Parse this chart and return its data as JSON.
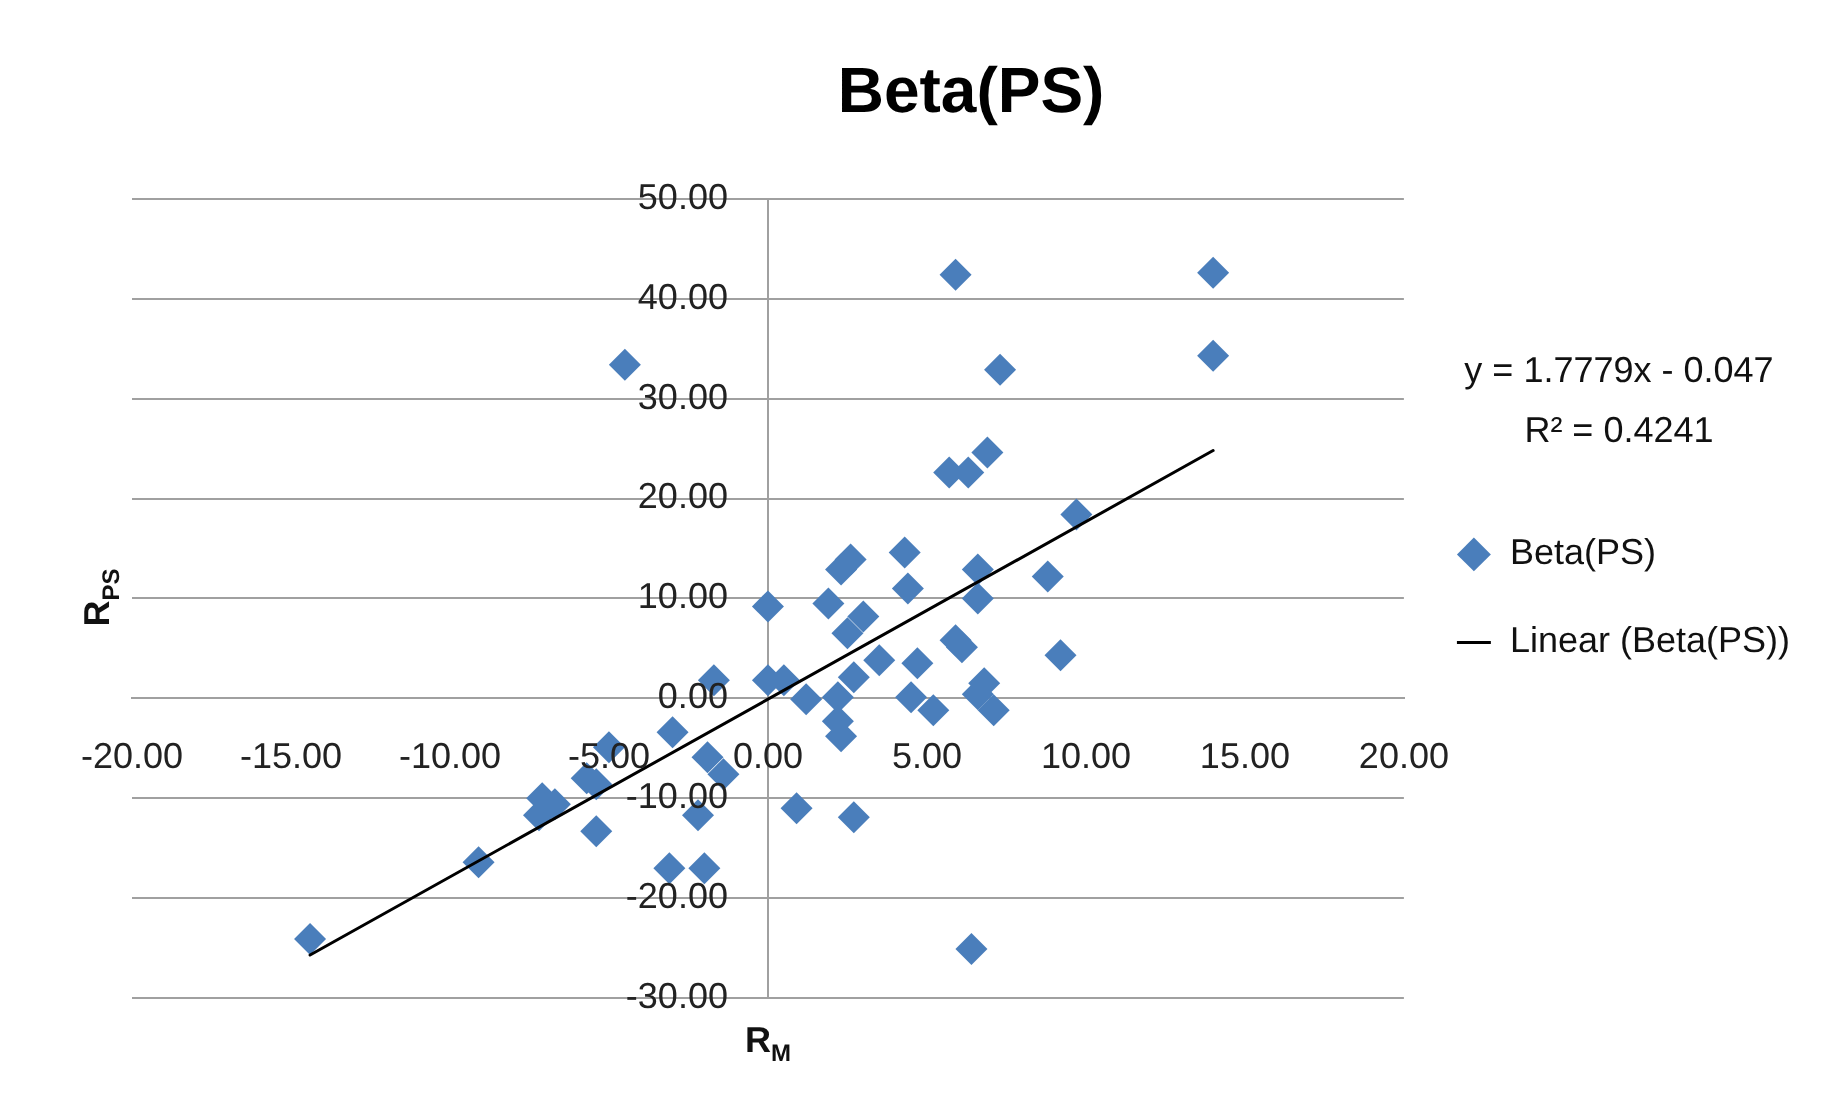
{
  "chart_data": {
    "type": "scatter",
    "title": "Beta(PS)",
    "xlabel": "R$_{M}$",
    "ylabel": "R$_{PS}$",
    "annotations": [
      "y = 1.7779x - 0.047",
      "R² = 0.4241"
    ],
    "xlim": [
      -20,
      20
    ],
    "xticks": [
      {
        "value": -20,
        "label": "-20.00"
      },
      {
        "value": -15,
        "label": "-15.00"
      },
      {
        "value": -10,
        "label": "-10.00"
      },
      {
        "value": -5,
        "label": "-5.00"
      },
      {
        "value": 0,
        "label": "0.00"
      },
      {
        "value": 5,
        "label": "5.00"
      },
      {
        "value": 10,
        "label": "10.00"
      },
      {
        "value": 15,
        "label": "15.00"
      },
      {
        "value": 20,
        "label": "20.00"
      }
    ],
    "ylim": [
      -30,
      50
    ],
    "yticks": [
      {
        "value": -30,
        "label": "-30.00"
      },
      {
        "value": -20,
        "label": "-20.00"
      },
      {
        "value": -10,
        "label": "-10.00"
      },
      {
        "value": 0,
        "label": "0.00"
      },
      {
        "value": 10,
        "label": "10.00"
      },
      {
        "value": 20,
        "label": "20.00"
      },
      {
        "value": 30,
        "label": "30.00"
      },
      {
        "value": 40,
        "label": "40.00"
      },
      {
        "value": 50,
        "label": "50.00"
      }
    ],
    "grid": "y",
    "legend": "right",
    "marker": "diamond",
    "series": [
      {
        "name": "Beta(PS)",
        "color": "#4a7ebb",
        "x": [
          -14.4,
          -9.1,
          -7.2,
          -7.1,
          -6.7,
          -5.7,
          -5.4,
          -5.4,
          -5.0,
          -4.5,
          -3.1,
          -3.0,
          -2.2,
          -2.0,
          -1.9,
          -1.4,
          -1.7,
          0.0,
          0.0,
          0.5,
          0.9,
          1.2,
          1.9,
          2.2,
          2.2,
          2.3,
          2.3,
          2.5,
          2.6,
          2.7,
          2.7,
          3.0,
          3.5,
          4.3,
          4.4,
          4.5,
          4.7,
          5.2,
          5.7,
          5.9,
          5.9,
          6.1,
          6.3,
          6.4,
          6.6,
          6.6,
          6.6,
          6.8,
          6.9,
          7.1,
          7.3,
          8.8,
          9.2,
          9.7,
          14.0,
          14.0
        ],
        "values": [
          -24.1,
          -16.4,
          -11.7,
          -10.0,
          -10.6,
          -8.0,
          -8.6,
          -13.3,
          -4.9,
          33.4,
          -17.0,
          -3.4,
          -11.7,
          -17.0,
          -5.9,
          -7.6,
          1.8,
          9.2,
          1.8,
          1.8,
          -11.0,
          -0.1,
          9.5,
          0.1,
          -2.3,
          -3.8,
          12.9,
          6.5,
          13.9,
          2.1,
          -11.9,
          8.2,
          3.8,
          14.6,
          11.0,
          0.1,
          3.5,
          -1.2,
          22.6,
          42.4,
          5.8,
          5.1,
          22.6,
          -25.1,
          12.9,
          10.0,
          0.4,
          1.5,
          24.6,
          -1.2,
          32.9,
          12.2,
          4.3,
          18.4,
          42.6,
          34.3
        ]
      },
      {
        "name": "Linear (Beta(PS))",
        "type": "line",
        "color": "#000000",
        "marker": "none",
        "line_style": "solid",
        "x": [
          -14.4,
          14.0
        ],
        "values": [
          -25.7,
          24.8
        ]
      }
    ]
  }
}
